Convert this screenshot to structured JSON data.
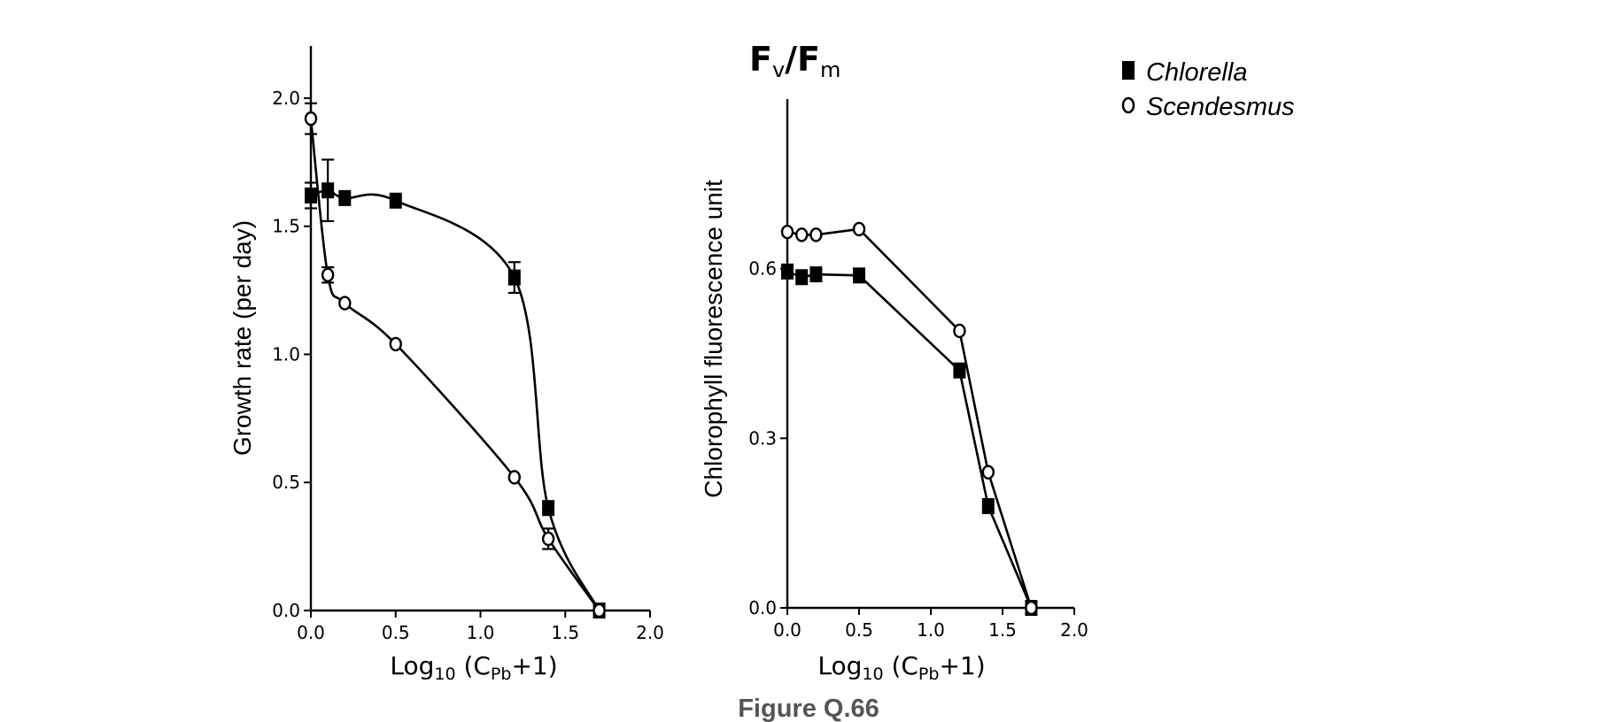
{
  "chart_data": [
    {
      "type": "line",
      "title": "",
      "xlabel": "Log10 (CPb+1)",
      "ylabel": "Growth rate (per day)",
      "xlim": [
        0,
        2.0
      ],
      "ylim": [
        0,
        2.1
      ],
      "xticks": [
        "0.0",
        "0.5",
        "1.0",
        "1.5",
        "2.0"
      ],
      "yticks": [
        "0.0",
        "0.5",
        "1.0",
        "1.5",
        "2.0"
      ],
      "series": [
        {
          "name": "Chlorella",
          "marker": "square-filled",
          "curve": "smooth",
          "x": [
            0,
            0.1,
            0.2,
            0.5,
            1.2,
            1.4,
            1.7
          ],
          "y": [
            1.62,
            1.64,
            1.61,
            1.6,
            1.3,
            0.4,
            0.0
          ],
          "error": [
            0.05,
            0.12,
            0,
            0,
            0.06,
            0,
            0
          ]
        },
        {
          "name": "Scendesmus",
          "marker": "circle-open",
          "curve": "smooth",
          "x": [
            0,
            0.1,
            0.2,
            0.5,
            1.2,
            1.4,
            1.7
          ],
          "y": [
            1.92,
            1.31,
            1.2,
            1.04,
            0.52,
            0.28,
            0.0
          ],
          "error": [
            0.06,
            0.03,
            0,
            0,
            0,
            0.04,
            0
          ]
        }
      ]
    },
    {
      "type": "line",
      "title": "Fv/Fm",
      "title_main": "F",
      "title_sub1": "v",
      "title_mid": "/F",
      "title_sub2": "m",
      "xlabel": "Log10 (CPb+1)",
      "ylabel": "Chlorophyll fluorescence unit",
      "xlim": [
        0,
        2.0
      ],
      "ylim": [
        0,
        0.9
      ],
      "xticks": [
        "0.0",
        "0.5",
        "1.0",
        "1.5",
        "2.0"
      ],
      "yticks": [
        "0.0",
        "0.3",
        "0.6"
      ],
      "series": [
        {
          "name": "Chlorella",
          "marker": "square-filled",
          "curve": "straight",
          "x": [
            0,
            0.1,
            0.2,
            0.5,
            1.2,
            1.4,
            1.7
          ],
          "y": [
            0.595,
            0.585,
            0.59,
            0.588,
            0.42,
            0.18,
            0.0
          ]
        },
        {
          "name": "Scendesmus",
          "marker": "circle-open",
          "curve": "straight",
          "x": [
            0,
            0.1,
            0.2,
            0.5,
            1.2,
            1.4,
            1.7
          ],
          "y": [
            0.665,
            0.66,
            0.66,
            0.67,
            0.49,
            0.24,
            0.0
          ]
        }
      ]
    }
  ],
  "axis_label": {
    "log_base": "Log",
    "log_sub": "10",
    "paren_open": " (C",
    "pb_sub": "Pb",
    "paren_close": "+1)"
  },
  "legend": {
    "placement": "top-right",
    "items": [
      {
        "label": "Chlorella",
        "marker": "square-filled"
      },
      {
        "label": "Scendesmus",
        "marker": "circle-open"
      }
    ]
  },
  "caption": "Figure Q.66"
}
